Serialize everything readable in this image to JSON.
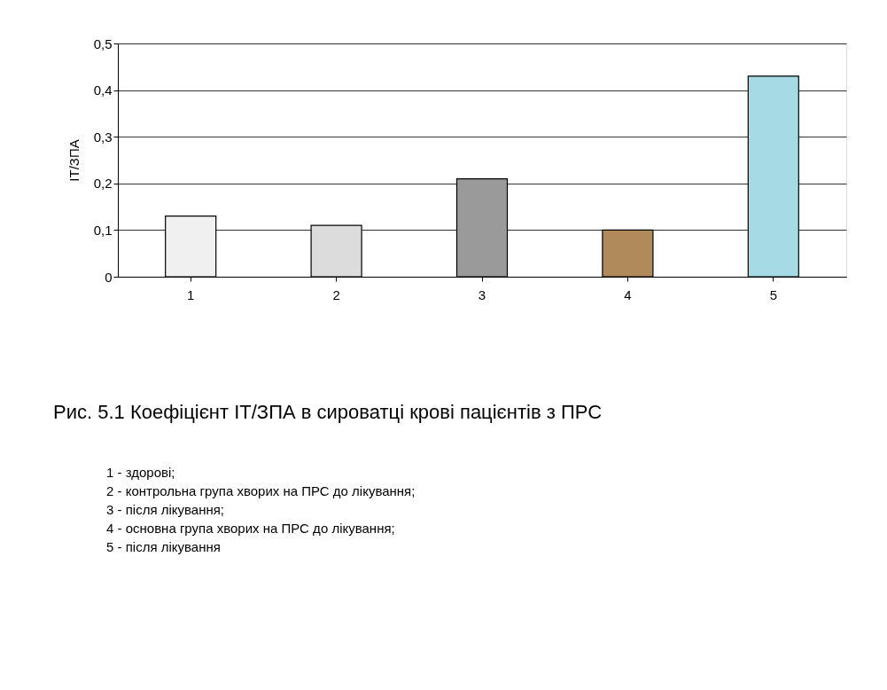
{
  "chart_data": {
    "type": "bar",
    "title": "Рис. 5.1 Коефіцієнт ІТ/ЗПА в сироватці крові пацієнтів з ПРС",
    "ylabel": "ІТ/ЗПА",
    "categories": [
      "1",
      "2",
      "3",
      "4",
      "5"
    ],
    "values": [
      0.13,
      0.11,
      0.21,
      0.1,
      0.43
    ],
    "colors": [
      "#f0f0f0",
      "#dcdcdc",
      "#9a9a9a",
      "#b08a5a",
      "#a6dbe6"
    ],
    "ylim": [
      0,
      0.5
    ],
    "yticks": [
      0,
      {
        "value": 0.1,
        "label": "0,1"
      },
      {
        "value": 0.2,
        "label": "0,2"
      },
      {
        "value": 0.3,
        "label": "0,3"
      },
      {
        "value": 0.4,
        "label": "0,4"
      },
      {
        "value": 0.5,
        "label": "0,5"
      }
    ],
    "grid": "y",
    "annotations": [
      "1 - здорові;",
      "2 - контрольна група хворих на ПРС до лікування;",
      "3 - після лікування;",
      "4 - основна група хворих на ПРС до лікування;",
      "5 - після лікування"
    ]
  }
}
